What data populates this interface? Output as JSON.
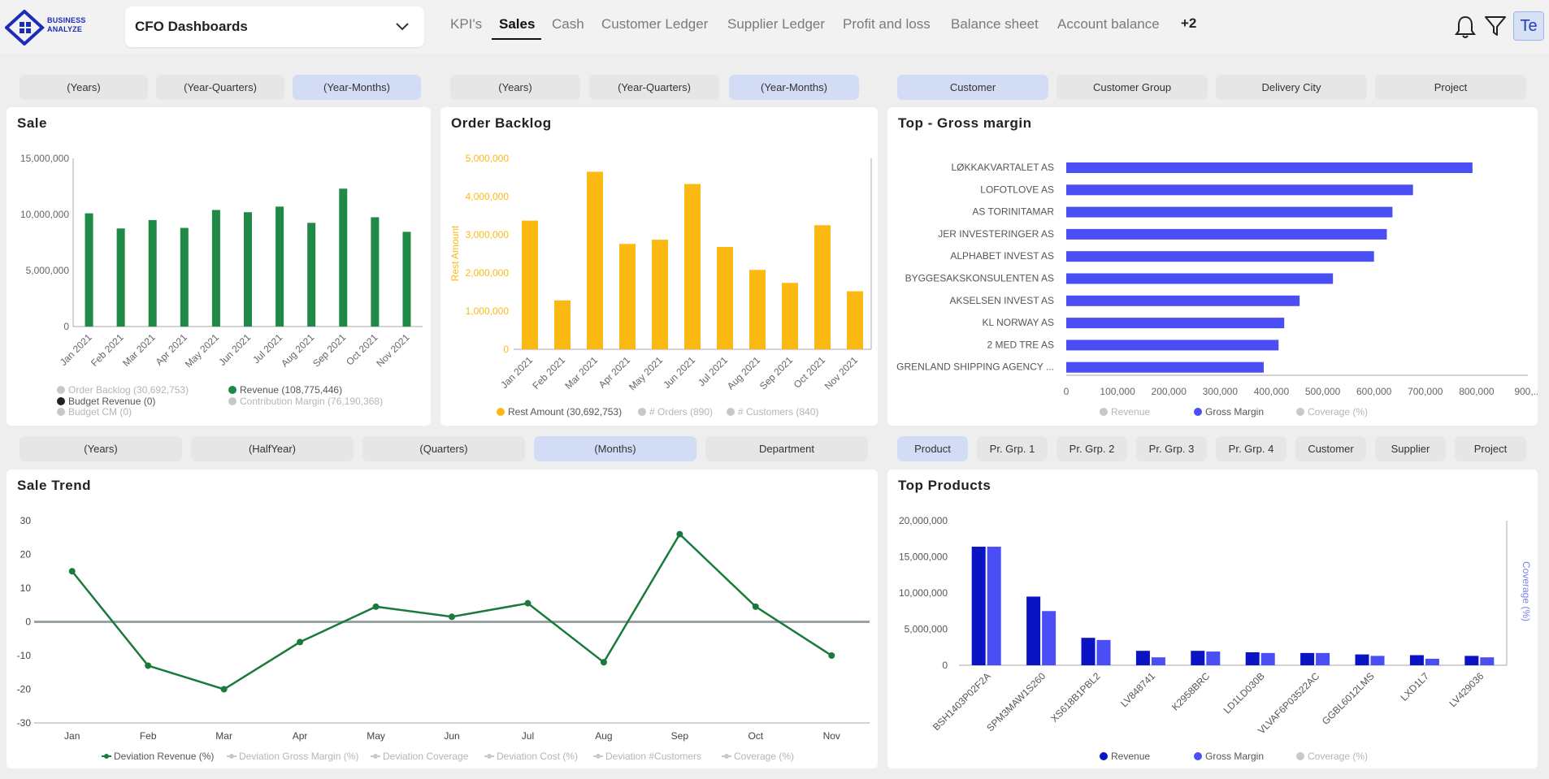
{
  "header": {
    "logo_text": [
      "BUSINESS",
      "ANALYZE"
    ],
    "dashboard_select": "CFO Dashboards",
    "nav": [
      "KPI's",
      "Sales",
      "Cash",
      "Customer Ledger",
      "Supplier Ledger",
      "Profit and loss",
      "Balance sheet",
      "Account balance",
      "+2"
    ],
    "active_nav": "Sales",
    "avatar": "Te",
    "icons": [
      "bell-icon",
      "filter-icon"
    ]
  },
  "filters_row1": {
    "group1": [
      "(Years)",
      "(Year-Quarters)",
      "(Year-Months)"
    ],
    "group2": [
      "(Years)",
      "(Year-Quarters)",
      "(Year-Months)"
    ],
    "group3": [
      "Customer",
      "Customer Group",
      "Delivery City",
      "Project"
    ],
    "selected": [
      "(Year-Months)",
      "(Year-Months)",
      "Customer"
    ]
  },
  "filters_row2": {
    "group1": [
      "(Years)",
      "(HalfYear)",
      "(Quarters)",
      "(Months)",
      "Department"
    ],
    "group2": [
      "Product",
      "Pr. Grp. 1",
      "Pr. Grp. 2",
      "Pr. Grp. 3",
      "Pr. Grp. 4",
      "Customer",
      "Supplier",
      "Project"
    ],
    "selected": [
      "(Months)",
      "Product"
    ]
  },
  "panels": {
    "sale": "Sale",
    "order_backlog": "Order Backlog",
    "gross_margin": "Top - Gross margin",
    "sale_trend": "Sale Trend",
    "top_products": "Top Products"
  },
  "colors": {
    "green": "#1e8a45",
    "dark_green": "#1a7a3c",
    "amber": "#fdb913",
    "blue": "#4a4ef5",
    "navy": "#0b14c4",
    "grey": "#c8c8c8"
  },
  "chart_data": [
    {
      "type": "bar",
      "title": "Sale",
      "categories": [
        "Jan 2021",
        "Feb 2021",
        "Mar 2021",
        "Apr 2021",
        "May 2021",
        "Jun 2021",
        "Jul 2021",
        "Aug 2021",
        "Sep 2021",
        "Oct 2021",
        "Nov 2021"
      ],
      "series": [
        {
          "name": "Revenue (108,775,446)",
          "values": [
            10100000,
            8750000,
            9500000,
            8800000,
            10400000,
            10200000,
            10700000,
            9250000,
            12300000,
            9750000,
            8450000
          ]
        }
      ],
      "yticks": [
        "0",
        "5,000,000",
        "10,000,000",
        "15,000,000"
      ],
      "ylim": [
        0,
        15000000
      ],
      "legend": [
        {
          "label": "Order Backlog (30,692,753)",
          "color": "#c8c8c8"
        },
        {
          "label": "Revenue (108,775,446)",
          "color": "#1e8a45"
        },
        {
          "label": "Budget Revenue (0)",
          "color": "#222222"
        },
        {
          "label": "Contribution Margin (76,190,368)",
          "color": "#c8c8c8"
        },
        {
          "label": "Budget CM (0)",
          "color": "#c8c8c8"
        }
      ]
    },
    {
      "type": "bar",
      "title": "Order Backlog",
      "ylabel": "Rest Amount",
      "categories": [
        "Jan 2021",
        "Feb 2021",
        "Mar 2021",
        "Apr 2021",
        "May 2021",
        "Jun 2021",
        "Jul 2021",
        "Aug 2021",
        "Sep 2021",
        "Oct 2021",
        "Nov 2021"
      ],
      "series": [
        {
          "name": "Rest Amount (30,692,753)",
          "values": [
            3370000,
            1280000,
            4650000,
            2760000,
            2870000,
            4330000,
            2680000,
            2080000,
            1740000,
            3250000,
            1520000
          ]
        }
      ],
      "yticks": [
        "0",
        "1,000,000",
        "2,000,000",
        "3,000,000",
        "4,000,000",
        "5,000,000"
      ],
      "ylim": [
        0,
        5000000
      ],
      "legend": [
        {
          "label": "Rest Amount (30,692,753)",
          "color": "#fdb913"
        },
        {
          "label": "# Orders (890)",
          "color": "#c8c8c8"
        },
        {
          "label": "# Customers (840)",
          "color": "#c8c8c8"
        }
      ]
    },
    {
      "type": "bar",
      "orientation": "horizontal",
      "title": "Top - Gross margin",
      "categories": [
        "LØKKAKVARTALET AS",
        "LOFOTLOVE AS",
        "AS TORINITAMAR",
        "JER INVESTERINGER AS",
        "ALPHABET INVEST AS",
        "BYGGESAKSKONSULENTEN AS",
        "AKSELSEN INVEST AS",
        "KL NORWAY AS",
        "2 MED TRE AS",
        "GRENLAND SHIPPING AGENCY ..."
      ],
      "series": [
        {
          "name": "Gross Margin",
          "values": [
            792000,
            676000,
            636000,
            625000,
            600000,
            520000,
            455000,
            425000,
            414000,
            385000
          ]
        }
      ],
      "xticks": [
        "0",
        "100,000",
        "200,000",
        "300,000",
        "400,000",
        "500,000",
        "600,000",
        "700,000",
        "800,000",
        "900,..."
      ],
      "xlim": [
        0,
        900000
      ],
      "legend": [
        {
          "label": "Revenue",
          "color": "#c8c8c8"
        },
        {
          "label": "Gross Margin",
          "color": "#4a4ef5"
        },
        {
          "label": "Coverage (%)",
          "color": "#c8c8c8"
        }
      ]
    },
    {
      "type": "line",
      "title": "Sale Trend",
      "categories": [
        "Jan",
        "Feb",
        "Mar",
        "Apr",
        "May",
        "Jun",
        "Jul",
        "Aug",
        "Sep",
        "Oct",
        "Nov"
      ],
      "series": [
        {
          "name": "Deviation Revenue (%)",
          "values": [
            15,
            -13,
            -20,
            -6,
            4.5,
            1.5,
            5.5,
            -12,
            26,
            4.5,
            -10
          ]
        }
      ],
      "yticks": [
        "30",
        "20",
        "10",
        "0",
        "-10",
        "-20",
        "-30"
      ],
      "ylim": [
        -30,
        30
      ],
      "legend": [
        {
          "label": "Deviation Revenue (%)",
          "color": "#1a7a3c"
        },
        {
          "label": "Deviation Gross Margin (%)",
          "color": "#c8c8c8"
        },
        {
          "label": "Deviation Coverage",
          "color": "#c8c8c8"
        },
        {
          "label": "Deviation Cost (%)",
          "color": "#c8c8c8"
        },
        {
          "label": "Deviation #Customers",
          "color": "#c8c8c8"
        },
        {
          "label": "Coverage (%)",
          "color": "#c8c8c8"
        }
      ]
    },
    {
      "type": "bar",
      "title": "Top Products",
      "categories": [
        "BSH1403P02F2A",
        "SPM3MAW1S260",
        "XS618B1PBL2",
        "LV848741",
        "K2958BRC",
        "LD1LD030B",
        "VLVAF6P03522AC",
        "GGBL6012LMS",
        "LXD1L7",
        "LV429036"
      ],
      "series": [
        {
          "name": "Revenue",
          "values": [
            16400000,
            9500000,
            3800000,
            2000000,
            2000000,
            1800000,
            1700000,
            1500000,
            1400000,
            1300000
          ]
        },
        {
          "name": "Gross Margin",
          "values": [
            16400000,
            7500000,
            3500000,
            1100000,
            1900000,
            1700000,
            1700000,
            1300000,
            900000,
            1100000
          ]
        }
      ],
      "yticks": [
        "0",
        "5,000,000",
        "10,000,000",
        "15,000,000",
        "20,000,000"
      ],
      "ylim": [
        0,
        20000000
      ],
      "y2label": "Coverage (%)",
      "legend": [
        {
          "label": "Revenue",
          "color": "#0b14c4"
        },
        {
          "label": "Gross Margin",
          "color": "#4a4ef5"
        },
        {
          "label": "Coverage (%)",
          "color": "#c8c8c8"
        }
      ]
    }
  ]
}
